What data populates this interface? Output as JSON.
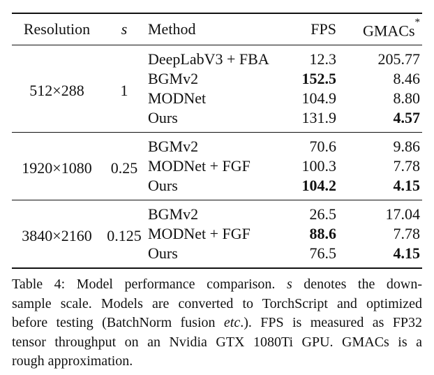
{
  "table": {
    "header": {
      "resolution": "Resolution",
      "s": "s",
      "method": "Method",
      "fps": "FPS",
      "gmacs": "GMACs",
      "gmacs_sup": "*"
    },
    "groups": [
      {
        "resolution": "512×288",
        "s": "1",
        "rows": [
          {
            "method": "DeepLabV3 + FBA",
            "fps": "12.3",
            "fps_bold": false,
            "gmacs": "205.77",
            "gmacs_bold": false
          },
          {
            "method": "BGMv2",
            "fps": "152.5",
            "fps_bold": true,
            "gmacs": "8.46",
            "gmacs_bold": false
          },
          {
            "method": "MODNet",
            "fps": "104.9",
            "fps_bold": false,
            "gmacs": "8.80",
            "gmacs_bold": false
          },
          {
            "method": "Ours",
            "fps": "131.9",
            "fps_bold": false,
            "gmacs": "4.57",
            "gmacs_bold": true
          }
        ]
      },
      {
        "resolution": "1920×1080",
        "s": "0.25",
        "rows": [
          {
            "method": "BGMv2",
            "fps": "70.6",
            "fps_bold": false,
            "gmacs": "9.86",
            "gmacs_bold": false
          },
          {
            "method": "MODNet + FGF",
            "fps": "100.3",
            "fps_bold": false,
            "gmacs": "7.78",
            "gmacs_bold": false
          },
          {
            "method": "Ours",
            "fps": "104.2",
            "fps_bold": true,
            "gmacs": "4.15",
            "gmacs_bold": true
          }
        ]
      },
      {
        "resolution": "3840×2160",
        "s": "0.125",
        "rows": [
          {
            "method": "BGMv2",
            "fps": "26.5",
            "fps_bold": false,
            "gmacs": "17.04",
            "gmacs_bold": false
          },
          {
            "method": "MODNet + FGF",
            "fps": "88.6",
            "fps_bold": true,
            "gmacs": "7.78",
            "gmacs_bold": false
          },
          {
            "method": "Ours",
            "fps": "76.5",
            "fps_bold": false,
            "gmacs": "4.15",
            "gmacs_bold": true
          }
        ]
      }
    ]
  },
  "caption": {
    "lines": [
      [
        {
          "t": "Table 4: Model performance comparison.  "
        },
        {
          "t": "s",
          "i": true
        },
        {
          "t": " denotes the down-"
        }
      ],
      [
        {
          "t": "sample scale. Models are converted to TorchScript and optimized"
        }
      ],
      [
        {
          "t": "before testing (BatchNorm fusion "
        },
        {
          "t": "etc",
          "i": true
        },
        {
          "t": ".). FPS is measured as FP32"
        }
      ],
      [
        {
          "t": "tensor throughput on an Nvidia GTX 1080Ti GPU. GMACs is a"
        }
      ],
      [
        {
          "t": "rough approximation."
        }
      ]
    ]
  },
  "colors": {
    "text": "#111111",
    "background": "#ffffff",
    "rule": "#111111"
  }
}
